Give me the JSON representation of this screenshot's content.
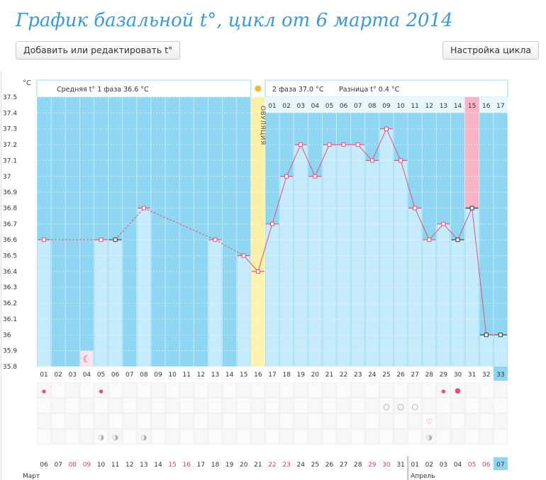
{
  "header": {
    "title": "График базальной t°, цикл от 6 марта 2014",
    "add_button": "Добавить или редактировать t°",
    "settings_button": "Настройка цикла"
  },
  "chart_data": {
    "type": "line",
    "title": "График базальной t°, цикл от 6 марта 2014",
    "ylabel": "°C",
    "ylim": [
      35.8,
      37.5
    ],
    "yticks": [
      "35.8",
      "35.9",
      "36",
      "36.1",
      "36.2",
      "36.3",
      "36.4",
      "36.5",
      "36.6",
      "36.7",
      "36.8",
      "36.9",
      "37",
      "37.1",
      "37.2",
      "37.3",
      "37.4",
      "37.5"
    ],
    "phase1_text": "Средняя t° 1 фаза 36.6 °С",
    "phase2_text": "2 фаза 37.0 °С",
    "diff_text": "Разница t° 0.4 °С",
    "ovulation_label": "ОВУЛЯЦИЯ",
    "ovulation_day": 16,
    "day_numbers": [
      "01",
      "02",
      "03",
      "04",
      "05",
      "06",
      "07",
      "08",
      "09",
      "10",
      "11",
      "12",
      "13",
      "14",
      "15",
      "16",
      "17",
      "18",
      "19",
      "20",
      "21",
      "22",
      "23",
      "24",
      "25",
      "26",
      "27",
      "28",
      "29",
      "30",
      "31",
      "32",
      "33"
    ],
    "luteal_days": [
      "01",
      "02",
      "03",
      "04",
      "05",
      "06",
      "07",
      "08",
      "09",
      "10",
      "11",
      "12",
      "13",
      "14",
      "15",
      "16",
      "17"
    ],
    "highlight_luteal": "15",
    "current_day": "33",
    "temperatures": [
      36.6,
      null,
      null,
      null,
      36.6,
      36.6,
      null,
      36.8,
      null,
      null,
      null,
      null,
      36.6,
      null,
      36.5,
      36.4,
      36.7,
      37.0,
      37.2,
      37.0,
      37.2,
      37.2,
      37.2,
      37.1,
      37.3,
      37.1,
      36.8,
      36.6,
      36.7,
      36.6,
      36.8,
      36.0,
      36.0
    ],
    "dates": [
      "06",
      "07",
      "08",
      "09",
      "10",
      "11",
      "12",
      "13",
      "14",
      "15",
      "16",
      "17",
      "18",
      "19",
      "20",
      "21",
      "22",
      "23",
      "24",
      "25",
      "26",
      "27",
      "28",
      "29",
      "30",
      "31",
      "01",
      "02",
      "03",
      "04",
      "05",
      "06",
      "07"
    ],
    "weekend_dates": [
      2,
      3,
      9,
      10,
      16,
      17,
      23,
      24,
      30,
      31
    ],
    "month1": "Март",
    "month2": "Апрель"
  },
  "colors": {
    "title": "#3a9ad8",
    "plot_bg": "#8fd6f2",
    "bar": "#c6ecfb",
    "ovulation": "#fcf0a8",
    "highlight": "#f9b3c6",
    "line": "#e8507a",
    "weekend": "#e83e6c",
    "current": "#8fd6f2"
  }
}
